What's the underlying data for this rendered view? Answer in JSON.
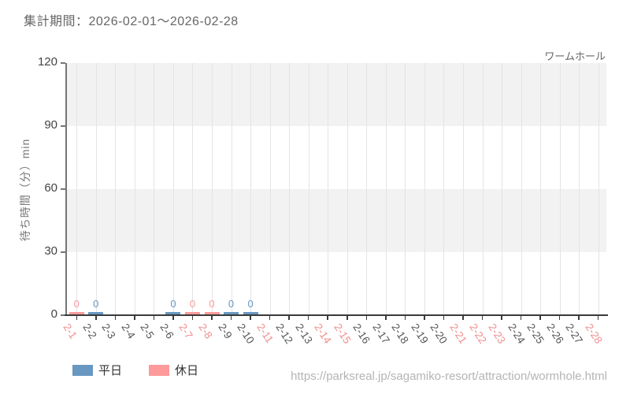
{
  "header": {
    "period_label": "集計期間：2026-02-01～2026-02-28"
  },
  "chart_data": {
    "type": "bar",
    "title": "ワームホール",
    "ylabel": "待ち時間（分）min",
    "ylim": [
      0,
      120
    ],
    "yticks": [
      0,
      30,
      60,
      90,
      120
    ],
    "categories": [
      "2-1",
      "2-2",
      "2-3",
      "2-4",
      "2-5",
      "2-6",
      "2-7",
      "2-8",
      "2-9",
      "2-10",
      "2-11",
      "2-12",
      "2-13",
      "2-14",
      "2-15",
      "2-16",
      "2-17",
      "2-18",
      "2-19",
      "2-20",
      "2-21",
      "2-22",
      "2-23",
      "2-24",
      "2-25",
      "2-26",
      "2-27",
      "2-28"
    ],
    "day_types": [
      "holiday",
      "weekday",
      "weekday",
      "weekday",
      "weekday",
      "weekday",
      "holiday",
      "holiday",
      "weekday",
      "weekday",
      "holiday",
      "weekday",
      "weekday",
      "holiday",
      "holiday",
      "weekday",
      "weekday",
      "weekday",
      "weekday",
      "weekday",
      "holiday",
      "holiday",
      "holiday",
      "weekday",
      "weekday",
      "weekday",
      "weekday",
      "holiday"
    ],
    "values": [
      0,
      0,
      null,
      null,
      null,
      0,
      0,
      0,
      0,
      0,
      null,
      null,
      null,
      null,
      null,
      null,
      null,
      null,
      null,
      null,
      null,
      null,
      null,
      null,
      null,
      null,
      null,
      null
    ],
    "series": [
      {
        "name": "平日",
        "day_type": "weekday",
        "color": "#6897c1"
      },
      {
        "name": "休日",
        "day_type": "holiday",
        "color": "#ff9a9a"
      }
    ],
    "weekday_label_color": "#555555",
    "holiday_label_color": "#f18d8d",
    "band_color": "#f2f2f3",
    "grid": true,
    "legend_position": "bottom-left"
  },
  "legend": {
    "items": [
      {
        "label": "平日",
        "color": "#6897c1"
      },
      {
        "label": "休日",
        "color": "#ff9a9a"
      }
    ]
  },
  "footer": {
    "url": "https://parksreal.jp/sagamiko-resort/attraction/wormhole.html"
  }
}
